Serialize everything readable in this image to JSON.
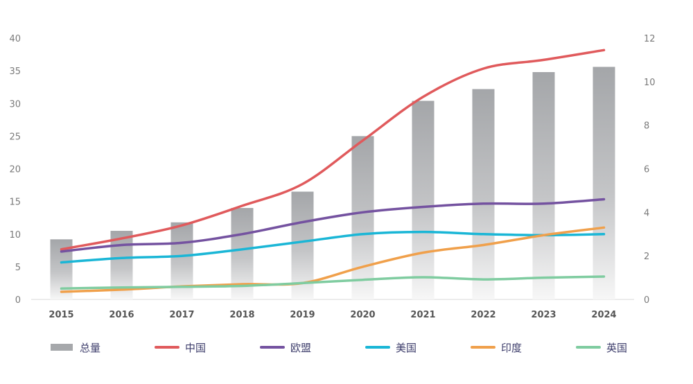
{
  "chart_data": {
    "type": "bar",
    "categories": [
      "2015",
      "2016",
      "2017",
      "2018",
      "2019",
      "2020",
      "2021",
      "2022",
      "2023",
      "2024"
    ],
    "bar_series": {
      "name": "总量",
      "color": "#a6a8ab",
      "values": [
        9.2,
        10.5,
        11.8,
        14.0,
        16.5,
        25.0,
        30.4,
        32.2,
        34.8,
        35.6
      ]
    },
    "line_series": [
      {
        "name": "中国",
        "color": "#e05a5c",
        "values": [
          2.3,
          2.8,
          3.4,
          4.3,
          5.3,
          7.3,
          9.3,
          10.6,
          11.0,
          11.45
        ]
      },
      {
        "name": "欧盟",
        "color": "#7452a0",
        "values": [
          2.2,
          2.5,
          2.6,
          3.0,
          3.55,
          4.0,
          4.25,
          4.4,
          4.4,
          4.6
        ]
      },
      {
        "name": "美国",
        "color": "#1ab6d6",
        "values": [
          1.7,
          1.9,
          2.0,
          2.3,
          2.65,
          3.0,
          3.1,
          3.0,
          2.95,
          3.0
        ]
      },
      {
        "name": "印度",
        "color": "#f0a04b",
        "values": [
          0.35,
          0.45,
          0.6,
          0.7,
          0.75,
          1.5,
          2.15,
          2.5,
          2.95,
          3.3
        ]
      },
      {
        "name": "英国",
        "color": "#7fcca0",
        "values": [
          0.5,
          0.55,
          0.58,
          0.62,
          0.75,
          0.9,
          1.02,
          0.92,
          1.0,
          1.05
        ]
      }
    ],
    "left_axis": {
      "ylim": [
        0,
        40
      ],
      "ticks": [
        "0",
        "5",
        "10",
        "15",
        "20",
        "25",
        "30",
        "35",
        "40"
      ]
    },
    "right_axis": {
      "ylim": [
        0,
        12
      ],
      "ticks": [
        "0",
        "2",
        "4",
        "6",
        "8",
        "10",
        "12"
      ]
    },
    "grid": false,
    "legend_position": "bottom"
  }
}
